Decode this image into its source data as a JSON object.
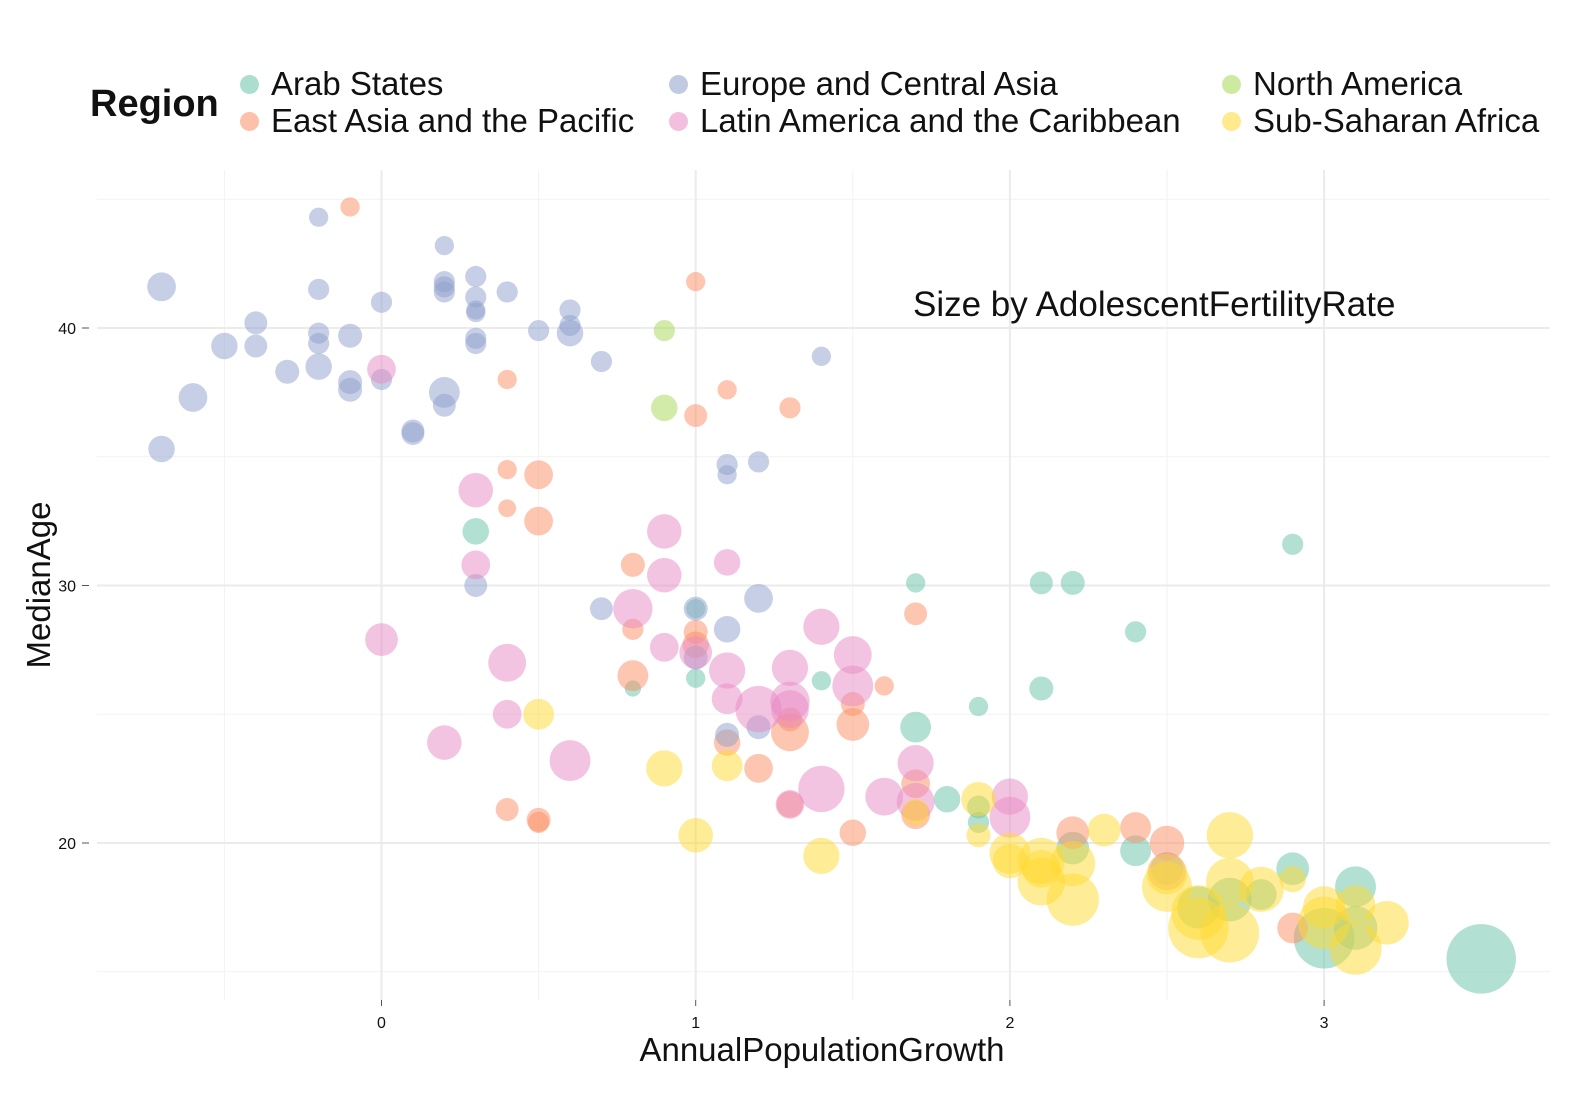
{
  "chart_data": {
    "type": "scatter",
    "subtype": "bubble",
    "title": "",
    "xlabel": "AnnualPopulationGrowth",
    "ylabel": "MedianAge",
    "xlim": [
      -0.9,
      3.7
    ],
    "ylim": [
      14.5,
      46.5
    ],
    "x_ticks": [
      0,
      1,
      2,
      3
    ],
    "y_ticks": [
      20,
      30,
      40
    ],
    "grid": true,
    "legend": {
      "title": "Region",
      "placement": "top"
    },
    "annotation": "Size by AdolescentFertilityRate",
    "size_by": "AdolescentFertilityRate",
    "size_range": [
      3,
      200
    ],
    "series": [
      {
        "name": "Arab States",
        "color": "#66c2a5",
        "points": [
          {
            "x": 0.3,
            "y": 32.1,
            "size": 25
          },
          {
            "x": 0.8,
            "y": 26.0,
            "size": 8
          },
          {
            "x": 1.0,
            "y": 26.4,
            "size": 12
          },
          {
            "x": 1.0,
            "y": 29.1,
            "size": 12
          },
          {
            "x": 1.4,
            "y": 26.3,
            "size": 12
          },
          {
            "x": 1.7,
            "y": 30.1,
            "size": 12
          },
          {
            "x": 1.7,
            "y": 24.5,
            "size": 35
          },
          {
            "x": 1.8,
            "y": 21.7,
            "size": 25
          },
          {
            "x": 1.9,
            "y": 25.3,
            "size": 12
          },
          {
            "x": 1.9,
            "y": 20.8,
            "size": 15
          },
          {
            "x": 1.9,
            "y": 21.4,
            "size": 18
          },
          {
            "x": 2.1,
            "y": 30.1,
            "size": 18
          },
          {
            "x": 2.1,
            "y": 26.0,
            "size": 20
          },
          {
            "x": 2.2,
            "y": 30.1,
            "size": 20
          },
          {
            "x": 2.2,
            "y": 19.8,
            "size": 40
          },
          {
            "x": 2.4,
            "y": 28.2,
            "size": 15
          },
          {
            "x": 2.4,
            "y": 19.7,
            "size": 35
          },
          {
            "x": 2.5,
            "y": 19.0,
            "size": 40
          },
          {
            "x": 2.6,
            "y": 17.5,
            "size": 70
          },
          {
            "x": 2.7,
            "y": 17.8,
            "size": 75
          },
          {
            "x": 2.8,
            "y": 18.0,
            "size": 35
          },
          {
            "x": 2.9,
            "y": 31.6,
            "size": 15
          },
          {
            "x": 2.9,
            "y": 19.0,
            "size": 40
          },
          {
            "x": 3.0,
            "y": 16.3,
            "size": 150
          },
          {
            "x": 3.1,
            "y": 18.3,
            "size": 65
          },
          {
            "x": 3.1,
            "y": 16.7,
            "size": 75
          },
          {
            "x": 3.5,
            "y": 15.5,
            "size": 200
          }
        ]
      },
      {
        "name": "East Asia and the Pacific",
        "color": "#fc8d62",
        "points": [
          {
            "x": -0.1,
            "y": 44.7,
            "size": 12
          },
          {
            "x": 0.4,
            "y": 38.0,
            "size": 12
          },
          {
            "x": 0.4,
            "y": 34.5,
            "size": 12
          },
          {
            "x": 0.4,
            "y": 33.0,
            "size": 10
          },
          {
            "x": 0.4,
            "y": 21.3,
            "size": 18
          },
          {
            "x": 0.5,
            "y": 34.3,
            "size": 30
          },
          {
            "x": 0.5,
            "y": 32.5,
            "size": 30
          },
          {
            "x": 0.5,
            "y": 20.9,
            "size": 20
          },
          {
            "x": 0.5,
            "y": 20.8,
            "size": 15
          },
          {
            "x": 0.8,
            "y": 30.8,
            "size": 20
          },
          {
            "x": 0.8,
            "y": 28.3,
            "size": 15
          },
          {
            "x": 0.8,
            "y": 26.5,
            "size": 35
          },
          {
            "x": 1.0,
            "y": 41.8,
            "size": 12
          },
          {
            "x": 1.0,
            "y": 36.6,
            "size": 18
          },
          {
            "x": 1.0,
            "y": 28.2,
            "size": 20
          },
          {
            "x": 1.0,
            "y": 27.7,
            "size": 25
          },
          {
            "x": 1.1,
            "y": 37.6,
            "size": 12
          },
          {
            "x": 1.1,
            "y": 23.9,
            "size": 25
          },
          {
            "x": 1.2,
            "y": 22.9,
            "size": 30
          },
          {
            "x": 1.3,
            "y": 36.9,
            "size": 15
          },
          {
            "x": 1.3,
            "y": 24.3,
            "size": 55
          },
          {
            "x": 1.3,
            "y": 24.8,
            "size": 20
          },
          {
            "x": 1.3,
            "y": 21.5,
            "size": 25
          },
          {
            "x": 1.5,
            "y": 25.4,
            "size": 20
          },
          {
            "x": 1.5,
            "y": 24.6,
            "size": 40
          },
          {
            "x": 1.5,
            "y": 20.4,
            "size": 25
          },
          {
            "x": 1.6,
            "y": 26.1,
            "size": 12
          },
          {
            "x": 1.7,
            "y": 28.9,
            "size": 18
          },
          {
            "x": 1.7,
            "y": 22.3,
            "size": 30
          },
          {
            "x": 1.7,
            "y": 21.1,
            "size": 30
          },
          {
            "x": 2.2,
            "y": 20.4,
            "size": 40
          },
          {
            "x": 2.4,
            "y": 20.6,
            "size": 35
          },
          {
            "x": 2.5,
            "y": 20.0,
            "size": 45
          },
          {
            "x": 2.9,
            "y": 16.7,
            "size": 35
          }
        ]
      },
      {
        "name": "Europe and Central Asia",
        "color": "#8da0cb",
        "points": [
          {
            "x": -0.7,
            "y": 41.6,
            "size": 30
          },
          {
            "x": -0.7,
            "y": 35.3,
            "size": 25
          },
          {
            "x": -0.6,
            "y": 37.3,
            "size": 30
          },
          {
            "x": -0.5,
            "y": 39.3,
            "size": 25
          },
          {
            "x": -0.4,
            "y": 40.2,
            "size": 18
          },
          {
            "x": -0.4,
            "y": 39.3,
            "size": 18
          },
          {
            "x": -0.3,
            "y": 38.3,
            "size": 20
          },
          {
            "x": -0.2,
            "y": 44.3,
            "size": 12
          },
          {
            "x": -0.2,
            "y": 41.5,
            "size": 15
          },
          {
            "x": -0.2,
            "y": 39.8,
            "size": 15
          },
          {
            "x": -0.2,
            "y": 39.4,
            "size": 15
          },
          {
            "x": -0.2,
            "y": 38.5,
            "size": 25
          },
          {
            "x": -0.1,
            "y": 39.7,
            "size": 20
          },
          {
            "x": -0.1,
            "y": 37.9,
            "size": 20
          },
          {
            "x": -0.1,
            "y": 37.6,
            "size": 20
          },
          {
            "x": 0.0,
            "y": 41.0,
            "size": 15
          },
          {
            "x": 0.0,
            "y": 38.0,
            "size": 15
          },
          {
            "x": 0.1,
            "y": 36.0,
            "size": 18
          },
          {
            "x": 0.1,
            "y": 35.9,
            "size": 18
          },
          {
            "x": 0.2,
            "y": 43.2,
            "size": 12
          },
          {
            "x": 0.2,
            "y": 41.8,
            "size": 15
          },
          {
            "x": 0.2,
            "y": 41.6,
            "size": 15
          },
          {
            "x": 0.2,
            "y": 41.4,
            "size": 15
          },
          {
            "x": 0.2,
            "y": 37.5,
            "size": 35
          },
          {
            "x": 0.2,
            "y": 37.0,
            "size": 18
          },
          {
            "x": 0.3,
            "y": 42.0,
            "size": 15
          },
          {
            "x": 0.3,
            "y": 41.2,
            "size": 15
          },
          {
            "x": 0.3,
            "y": 40.7,
            "size": 12
          },
          {
            "x": 0.3,
            "y": 40.6,
            "size": 12
          },
          {
            "x": 0.3,
            "y": 39.6,
            "size": 15
          },
          {
            "x": 0.3,
            "y": 39.4,
            "size": 15
          },
          {
            "x": 0.3,
            "y": 30.0,
            "size": 18
          },
          {
            "x": 0.4,
            "y": 41.4,
            "size": 15
          },
          {
            "x": 0.5,
            "y": 39.9,
            "size": 15
          },
          {
            "x": 0.6,
            "y": 40.7,
            "size": 15
          },
          {
            "x": 0.6,
            "y": 40.1,
            "size": 15
          },
          {
            "x": 0.6,
            "y": 39.8,
            "size": 25
          },
          {
            "x": 0.7,
            "y": 38.7,
            "size": 15
          },
          {
            "x": 0.7,
            "y": 29.1,
            "size": 18
          },
          {
            "x": 1.0,
            "y": 29.1,
            "size": 20
          },
          {
            "x": 1.0,
            "y": 27.2,
            "size": 20
          },
          {
            "x": 1.1,
            "y": 34.7,
            "size": 15
          },
          {
            "x": 1.1,
            "y": 34.3,
            "size": 12
          },
          {
            "x": 1.1,
            "y": 28.3,
            "size": 25
          },
          {
            "x": 1.1,
            "y": 24.2,
            "size": 20
          },
          {
            "x": 1.2,
            "y": 34.8,
            "size": 15
          },
          {
            "x": 1.2,
            "y": 29.5,
            "size": 30
          },
          {
            "x": 1.2,
            "y": 24.5,
            "size": 20
          },
          {
            "x": 1.4,
            "y": 38.9,
            "size": 12
          }
        ]
      },
      {
        "name": "Latin America and the Caribbean",
        "color": "#e78ac3",
        "points": [
          {
            "x": 0.0,
            "y": 38.4,
            "size": 30
          },
          {
            "x": 0.0,
            "y": 27.9,
            "size": 40
          },
          {
            "x": 0.2,
            "y": 23.9,
            "size": 45
          },
          {
            "x": 0.3,
            "y": 33.7,
            "size": 45
          },
          {
            "x": 0.3,
            "y": 30.8,
            "size": 30
          },
          {
            "x": 0.4,
            "y": 27.0,
            "size": 55
          },
          {
            "x": 0.4,
            "y": 25.0,
            "size": 30
          },
          {
            "x": 0.6,
            "y": 23.2,
            "size": 65
          },
          {
            "x": 0.8,
            "y": 29.1,
            "size": 60
          },
          {
            "x": 0.9,
            "y": 32.1,
            "size": 45
          },
          {
            "x": 0.9,
            "y": 30.4,
            "size": 45
          },
          {
            "x": 0.9,
            "y": 27.6,
            "size": 30
          },
          {
            "x": 1.0,
            "y": 27.4,
            "size": 40
          },
          {
            "x": 1.1,
            "y": 30.9,
            "size": 25
          },
          {
            "x": 1.1,
            "y": 26.7,
            "size": 50
          },
          {
            "x": 1.1,
            "y": 25.6,
            "size": 35
          },
          {
            "x": 1.2,
            "y": 25.2,
            "size": 85
          },
          {
            "x": 1.3,
            "y": 26.8,
            "size": 50
          },
          {
            "x": 1.3,
            "y": 25.5,
            "size": 60
          },
          {
            "x": 1.3,
            "y": 25.2,
            "size": 55
          },
          {
            "x": 1.3,
            "y": 21.5,
            "size": 30
          },
          {
            "x": 1.4,
            "y": 28.4,
            "size": 50
          },
          {
            "x": 1.4,
            "y": 22.1,
            "size": 85
          },
          {
            "x": 1.5,
            "y": 27.3,
            "size": 55
          },
          {
            "x": 1.5,
            "y": 26.1,
            "size": 65
          },
          {
            "x": 1.6,
            "y": 21.8,
            "size": 55
          },
          {
            "x": 1.7,
            "y": 23.1,
            "size": 50
          },
          {
            "x": 1.7,
            "y": 21.6,
            "size": 55
          },
          {
            "x": 2.0,
            "y": 21.8,
            "size": 50
          },
          {
            "x": 2.0,
            "y": 21.0,
            "size": 65
          },
          {
            "x": 2.5,
            "y": 18.9,
            "size": 55
          }
        ]
      },
      {
        "name": "North America",
        "color": "#a6d854",
        "points": [
          {
            "x": 0.9,
            "y": 39.9,
            "size": 15
          },
          {
            "x": 0.9,
            "y": 36.9,
            "size": 25
          }
        ]
      },
      {
        "name": "Sub-Saharan Africa",
        "color": "#ffd92f",
        "points": [
          {
            "x": 0.5,
            "y": 25.0,
            "size": 35
          },
          {
            "x": 0.9,
            "y": 22.9,
            "size": 50
          },
          {
            "x": 1.0,
            "y": 20.3,
            "size": 45
          },
          {
            "x": 1.1,
            "y": 23.0,
            "size": 35
          },
          {
            "x": 1.4,
            "y": 19.5,
            "size": 50
          },
          {
            "x": 1.7,
            "y": 21.2,
            "size": 25
          },
          {
            "x": 1.9,
            "y": 21.7,
            "size": 45
          },
          {
            "x": 1.9,
            "y": 20.3,
            "size": 20
          },
          {
            "x": 2.0,
            "y": 19.6,
            "size": 65
          },
          {
            "x": 2.0,
            "y": 19.3,
            "size": 45
          },
          {
            "x": 2.1,
            "y": 19.3,
            "size": 85
          },
          {
            "x": 2.1,
            "y": 18.5,
            "size": 90
          },
          {
            "x": 2.1,
            "y": 19.0,
            "size": 55
          },
          {
            "x": 2.2,
            "y": 19.2,
            "size": 80
          },
          {
            "x": 2.2,
            "y": 17.8,
            "size": 110
          },
          {
            "x": 2.3,
            "y": 20.5,
            "size": 40
          },
          {
            "x": 2.5,
            "y": 18.3,
            "size": 100
          },
          {
            "x": 2.5,
            "y": 18.8,
            "size": 65
          },
          {
            "x": 2.6,
            "y": 17.3,
            "size": 120
          },
          {
            "x": 2.6,
            "y": 16.7,
            "size": 150
          },
          {
            "x": 2.7,
            "y": 20.3,
            "size": 85
          },
          {
            "x": 2.7,
            "y": 18.5,
            "size": 90
          },
          {
            "x": 2.7,
            "y": 16.5,
            "size": 140
          },
          {
            "x": 2.8,
            "y": 18.2,
            "size": 80
          },
          {
            "x": 2.9,
            "y": 18.6,
            "size": 25
          },
          {
            "x": 3.0,
            "y": 17.5,
            "size": 70
          },
          {
            "x": 3.0,
            "y": 16.9,
            "size": 110
          },
          {
            "x": 3.1,
            "y": 17.6,
            "size": 60
          },
          {
            "x": 3.1,
            "y": 15.9,
            "size": 110
          },
          {
            "x": 3.2,
            "y": 16.9,
            "size": 75
          }
        ]
      }
    ]
  }
}
